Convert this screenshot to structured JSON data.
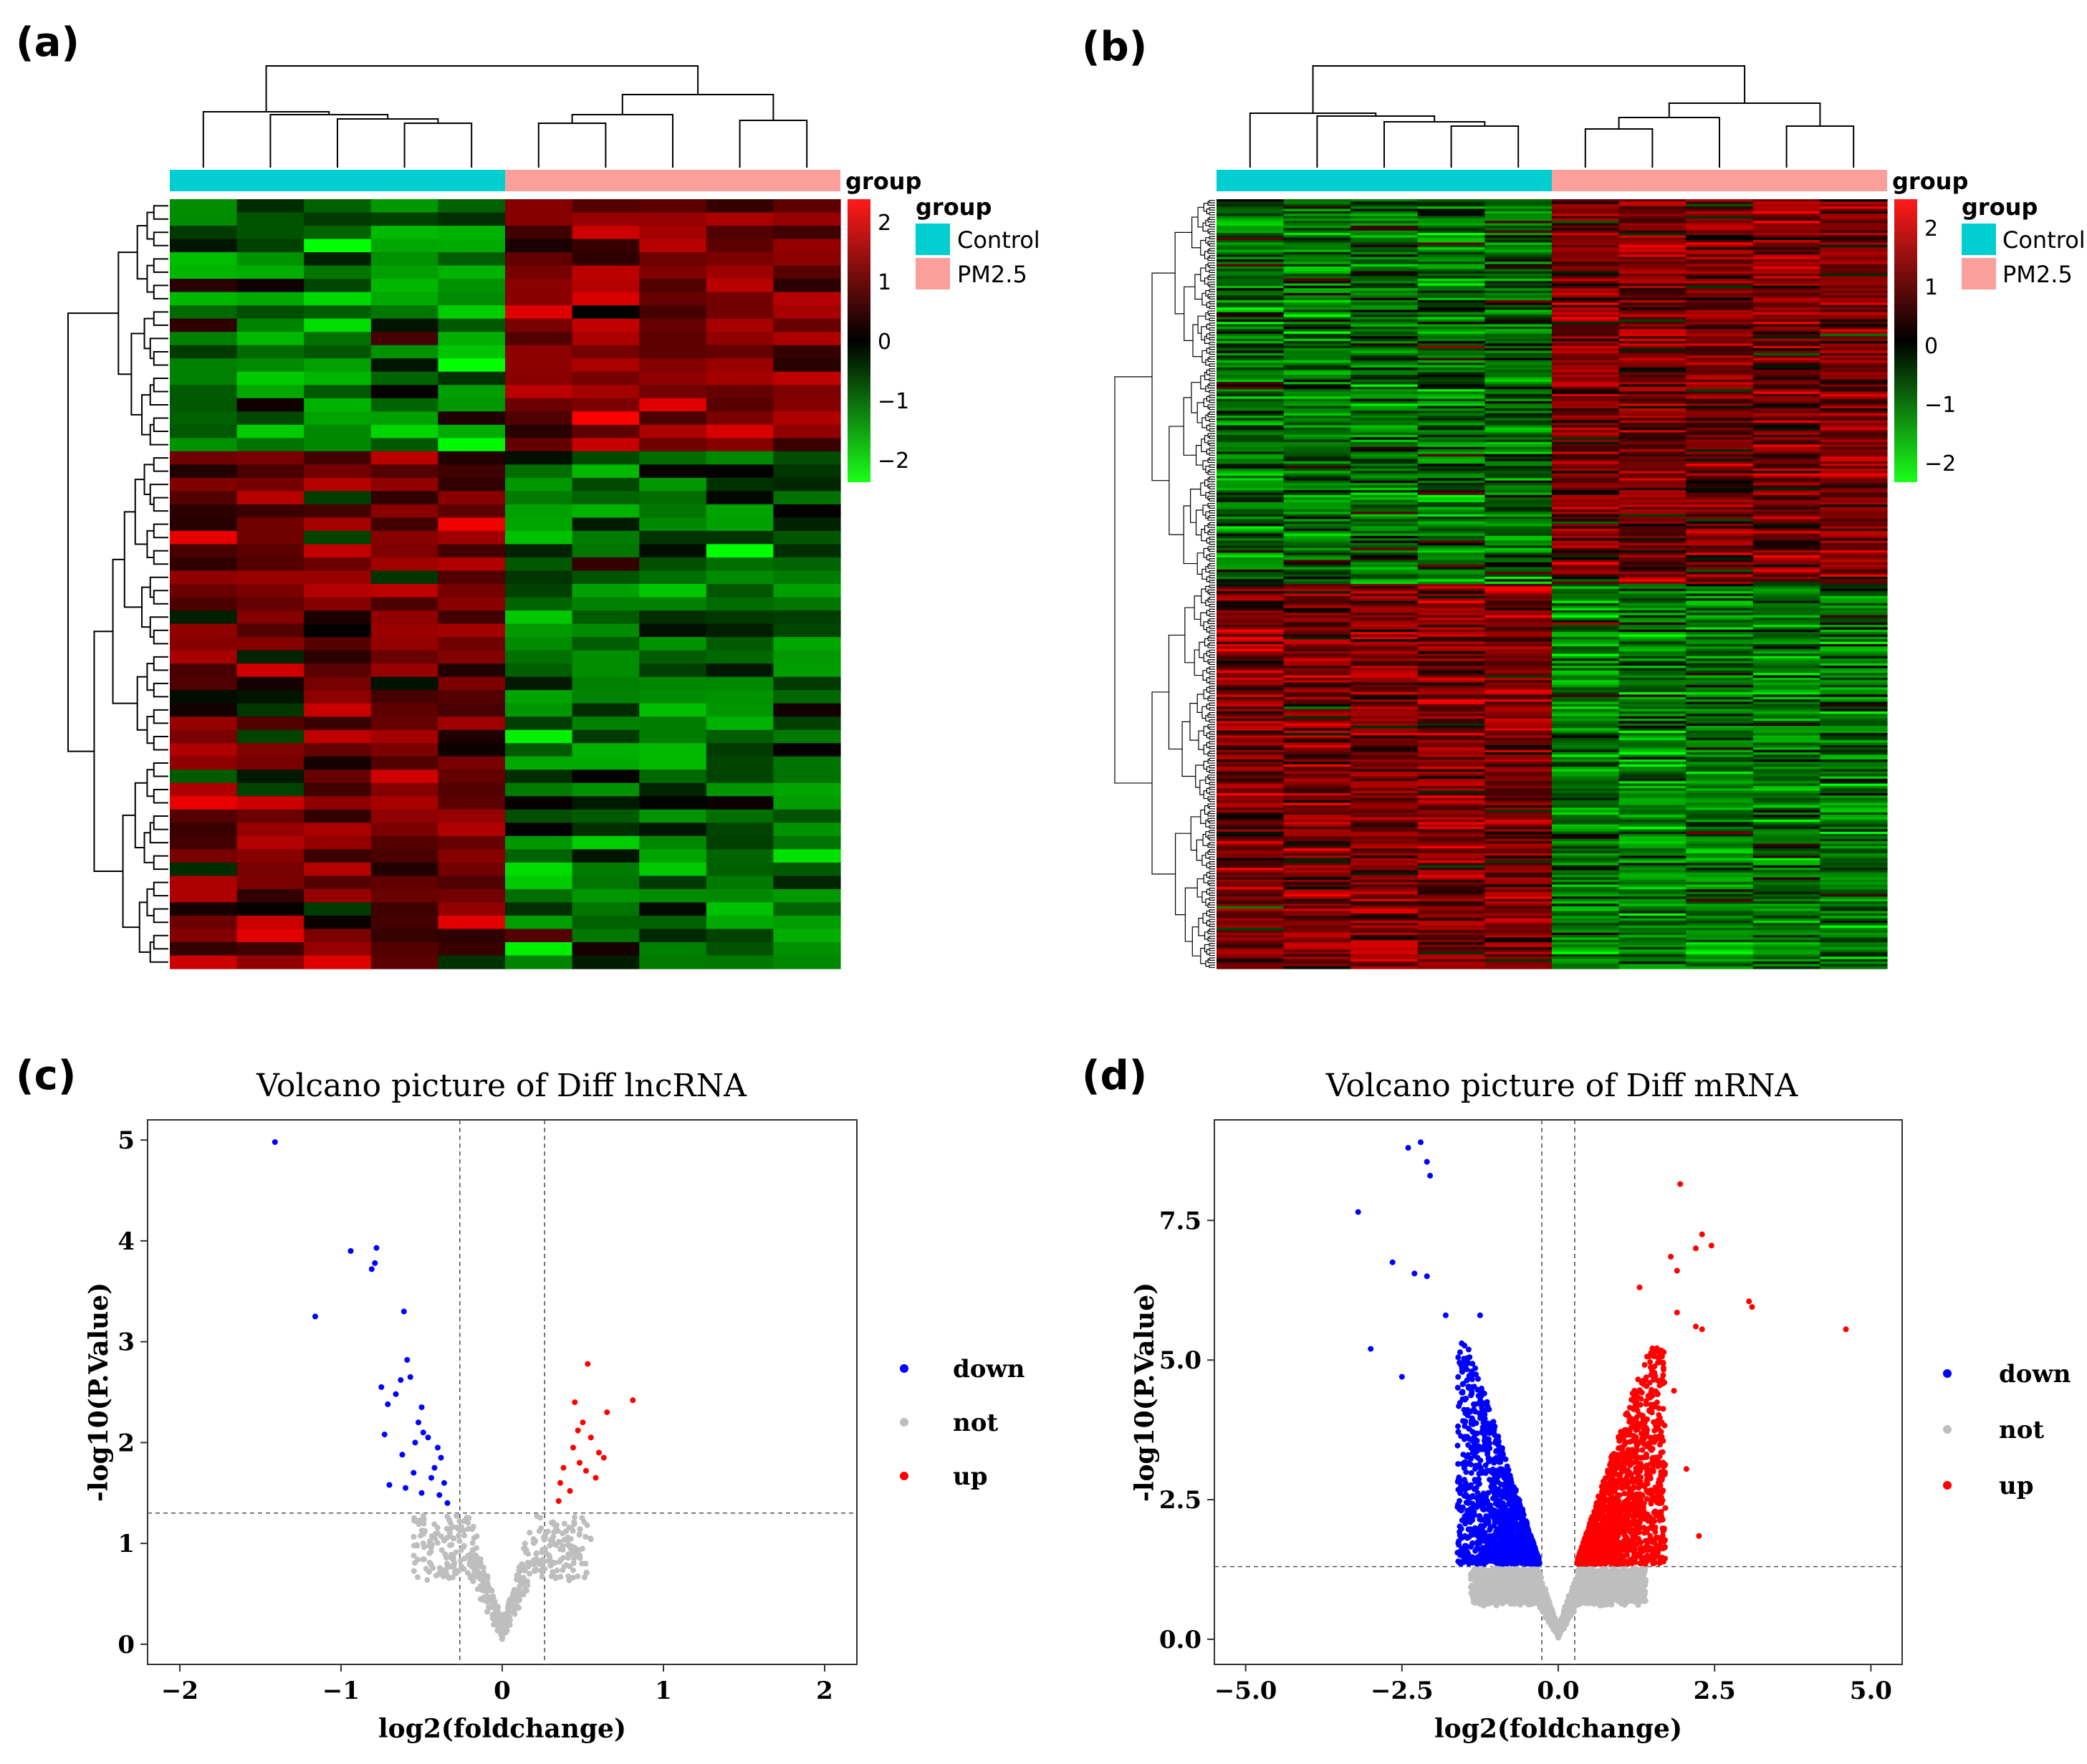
{
  "panels": [
    {
      "letter": "(a)",
      "type": "heatmap",
      "group_title": "group",
      "legend_title": "group",
      "groups": [
        {
          "label": "Control",
          "color": "#00CED1"
        },
        {
          "label": "PM2.5",
          "color": "#FA9F99"
        }
      ],
      "colorbar_ticks": [
        "2",
        "1",
        "0",
        "−1",
        "−2"
      ],
      "colorbar_values": [
        2,
        1,
        0,
        -1,
        -2
      ],
      "samples": 10,
      "genes": 58,
      "seed": 11
    },
    {
      "letter": "(b)",
      "type": "heatmap",
      "group_title": "group",
      "legend_title": "group",
      "groups": [
        {
          "label": "Control",
          "color": "#00CED1"
        },
        {
          "label": "PM2.5",
          "color": "#FA9F99"
        }
      ],
      "colorbar_ticks": [
        "2",
        "1",
        "0",
        "−1",
        "−2"
      ],
      "colorbar_values": [
        2,
        1,
        0,
        -1,
        -2
      ],
      "samples": 10,
      "genes": 320,
      "seed": 29
    },
    {
      "letter": "(c)",
      "type": "scatter",
      "title": "Volcano picture of Diff lncRNA",
      "xlabel": "log2(foldchange)",
      "ylabel": "-log10(P.Value)",
      "xlim": [
        -2.2,
        2.2
      ],
      "ylim": [
        -0.2,
        5.2
      ],
      "xticks": [
        "−2",
        "−1",
        "0",
        "1",
        "2"
      ],
      "xtick_values": [
        -2,
        -1,
        0,
        1,
        2
      ],
      "yticks": [
        "0",
        "1",
        "2",
        "3",
        "4",
        "5"
      ],
      "ytick_values": [
        0,
        1,
        2,
        3,
        4,
        5
      ],
      "fc_cut": 0.263,
      "p_cut": 1.301,
      "legend": [
        "down",
        "not",
        "up"
      ],
      "colors": {
        "down": "#0000FF",
        "not": "#BEBEBE",
        "up": "#FF0000"
      },
      "down_points": [
        [
          -1.41,
          4.98
        ],
        [
          -0.94,
          3.9
        ],
        [
          -0.78,
          3.93
        ],
        [
          -0.81,
          3.72
        ],
        [
          -0.79,
          3.78
        ],
        [
          -1.16,
          3.25
        ],
        [
          -0.61,
          3.3
        ],
        [
          -0.59,
          2.82
        ],
        [
          -0.57,
          2.65
        ],
        [
          -0.63,
          2.62
        ],
        [
          -0.75,
          2.55
        ],
        [
          -0.66,
          2.48
        ],
        [
          -0.71,
          2.38
        ],
        [
          -0.5,
          2.35
        ],
        [
          -0.52,
          2.2
        ],
        [
          -0.73,
          2.08
        ],
        [
          -0.54,
          2.0
        ],
        [
          -0.49,
          2.1
        ],
        [
          -0.46,
          2.05
        ],
        [
          -0.4,
          1.95
        ],
        [
          -0.38,
          1.85
        ],
        [
          -0.55,
          1.7
        ],
        [
          -0.44,
          1.65
        ],
        [
          -0.6,
          1.55
        ],
        [
          -0.36,
          1.6
        ],
        [
          -0.39,
          1.48
        ],
        [
          -0.7,
          1.58
        ],
        [
          -0.42,
          1.75
        ],
        [
          -0.34,
          1.4
        ],
        [
          -0.5,
          1.5
        ],
        [
          -0.62,
          1.88
        ]
      ],
      "up_points": [
        [
          0.53,
          2.78
        ],
        [
          0.81,
          2.42
        ],
        [
          0.65,
          2.3
        ],
        [
          0.45,
          2.4
        ],
        [
          0.5,
          2.2
        ],
        [
          0.47,
          2.12
        ],
        [
          0.55,
          2.05
        ],
        [
          0.44,
          1.95
        ],
        [
          0.6,
          1.9
        ],
        [
          0.38,
          1.75
        ],
        [
          0.48,
          1.8
        ],
        [
          0.52,
          1.72
        ],
        [
          0.36,
          1.6
        ],
        [
          0.58,
          1.65
        ],
        [
          0.42,
          1.52
        ],
        [
          0.35,
          1.42
        ],
        [
          0.63,
          1.85
        ]
      ],
      "n_not": 520,
      "seed": 7
    },
    {
      "letter": "(d)",
      "type": "scatter",
      "title": "Volcano picture of Diff mRNA",
      "xlabel": "log2(foldchange)",
      "ylabel": "-log10(P.Value)",
      "xlim": [
        -5.5,
        5.5
      ],
      "ylim": [
        -0.45,
        9.3
      ],
      "xticks": [
        "−5.0",
        "−2.5",
        "0.0",
        "2.5",
        "5.0"
      ],
      "xtick_values": [
        -5,
        -2.5,
        0,
        2.5,
        5
      ],
      "yticks": [
        "0.0",
        "2.5",
        "5.0",
        "7.5"
      ],
      "ytick_values": [
        0,
        2.5,
        5,
        7.5
      ],
      "fc_cut": 0.263,
      "p_cut": 1.301,
      "legend": [
        "down",
        "not",
        "up"
      ],
      "colors": {
        "down": "#0000FF",
        "not": "#BEBEBE",
        "up": "#FF0000"
      },
      "down_points": [
        [
          -2.2,
          8.9
        ],
        [
          -2.4,
          8.8
        ],
        [
          -2.1,
          8.55
        ],
        [
          -2.05,
          8.3
        ],
        [
          -3.2,
          7.65
        ],
        [
          -2.65,
          6.75
        ],
        [
          -2.3,
          6.55
        ],
        [
          -2.1,
          6.5
        ],
        [
          -3.0,
          5.2
        ],
        [
          -2.5,
          4.7
        ],
        [
          -1.8,
          5.8
        ],
        [
          -1.25,
          5.8
        ]
      ],
      "up_points": [
        [
          1.95,
          8.15
        ],
        [
          2.3,
          7.25
        ],
        [
          2.45,
          7.05
        ],
        [
          2.2,
          7.0
        ],
        [
          1.8,
          6.85
        ],
        [
          1.9,
          6.6
        ],
        [
          3.05,
          6.05
        ],
        [
          3.1,
          5.95
        ],
        [
          4.6,
          5.55
        ],
        [
          2.2,
          5.6
        ],
        [
          2.3,
          5.55
        ],
        [
          1.9,
          5.85
        ],
        [
          1.85,
          4.45
        ],
        [
          2.25,
          1.85
        ],
        [
          2.05,
          3.05
        ],
        [
          1.3,
          6.3
        ]
      ],
      "n_down": 1500,
      "n_up": 1700,
      "n_not": 2400,
      "seed": 13
    }
  ]
}
